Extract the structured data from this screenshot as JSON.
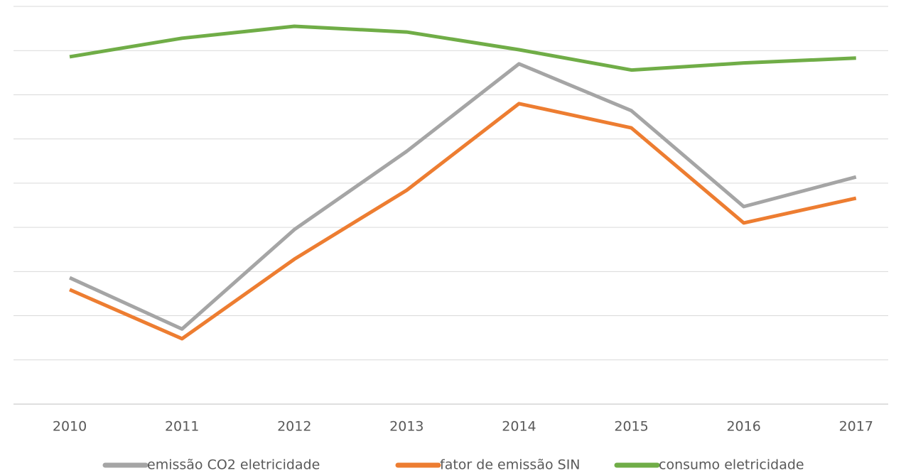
{
  "chart_data": {
    "type": "line",
    "categories": [
      "2010",
      "2011",
      "2012",
      "2013",
      "2014",
      "2015",
      "2016",
      "2017"
    ],
    "series": [
      {
        "name": "emissão CO2 eletricidade",
        "color": "#a5a5a5",
        "values": [
          2.86,
          1.7,
          3.95,
          5.72,
          7.7,
          6.64,
          4.47,
          5.14
        ]
      },
      {
        "name": "fator de emissão SIN",
        "color": "#ed7d31",
        "values": [
          2.59,
          1.48,
          3.28,
          4.84,
          6.8,
          6.25,
          4.1,
          4.66
        ]
      },
      {
        "name": "consumo eletricidade",
        "color": "#70ad47",
        "values": [
          7.86,
          8.28,
          8.55,
          8.42,
          8.02,
          7.56,
          7.72,
          7.83
        ]
      }
    ],
    "ylim": [
      0,
      9
    ],
    "yticks": [
      0,
      1,
      2,
      3,
      4,
      5,
      6,
      7,
      8,
      9
    ],
    "grid": true,
    "legend": "bottom"
  }
}
